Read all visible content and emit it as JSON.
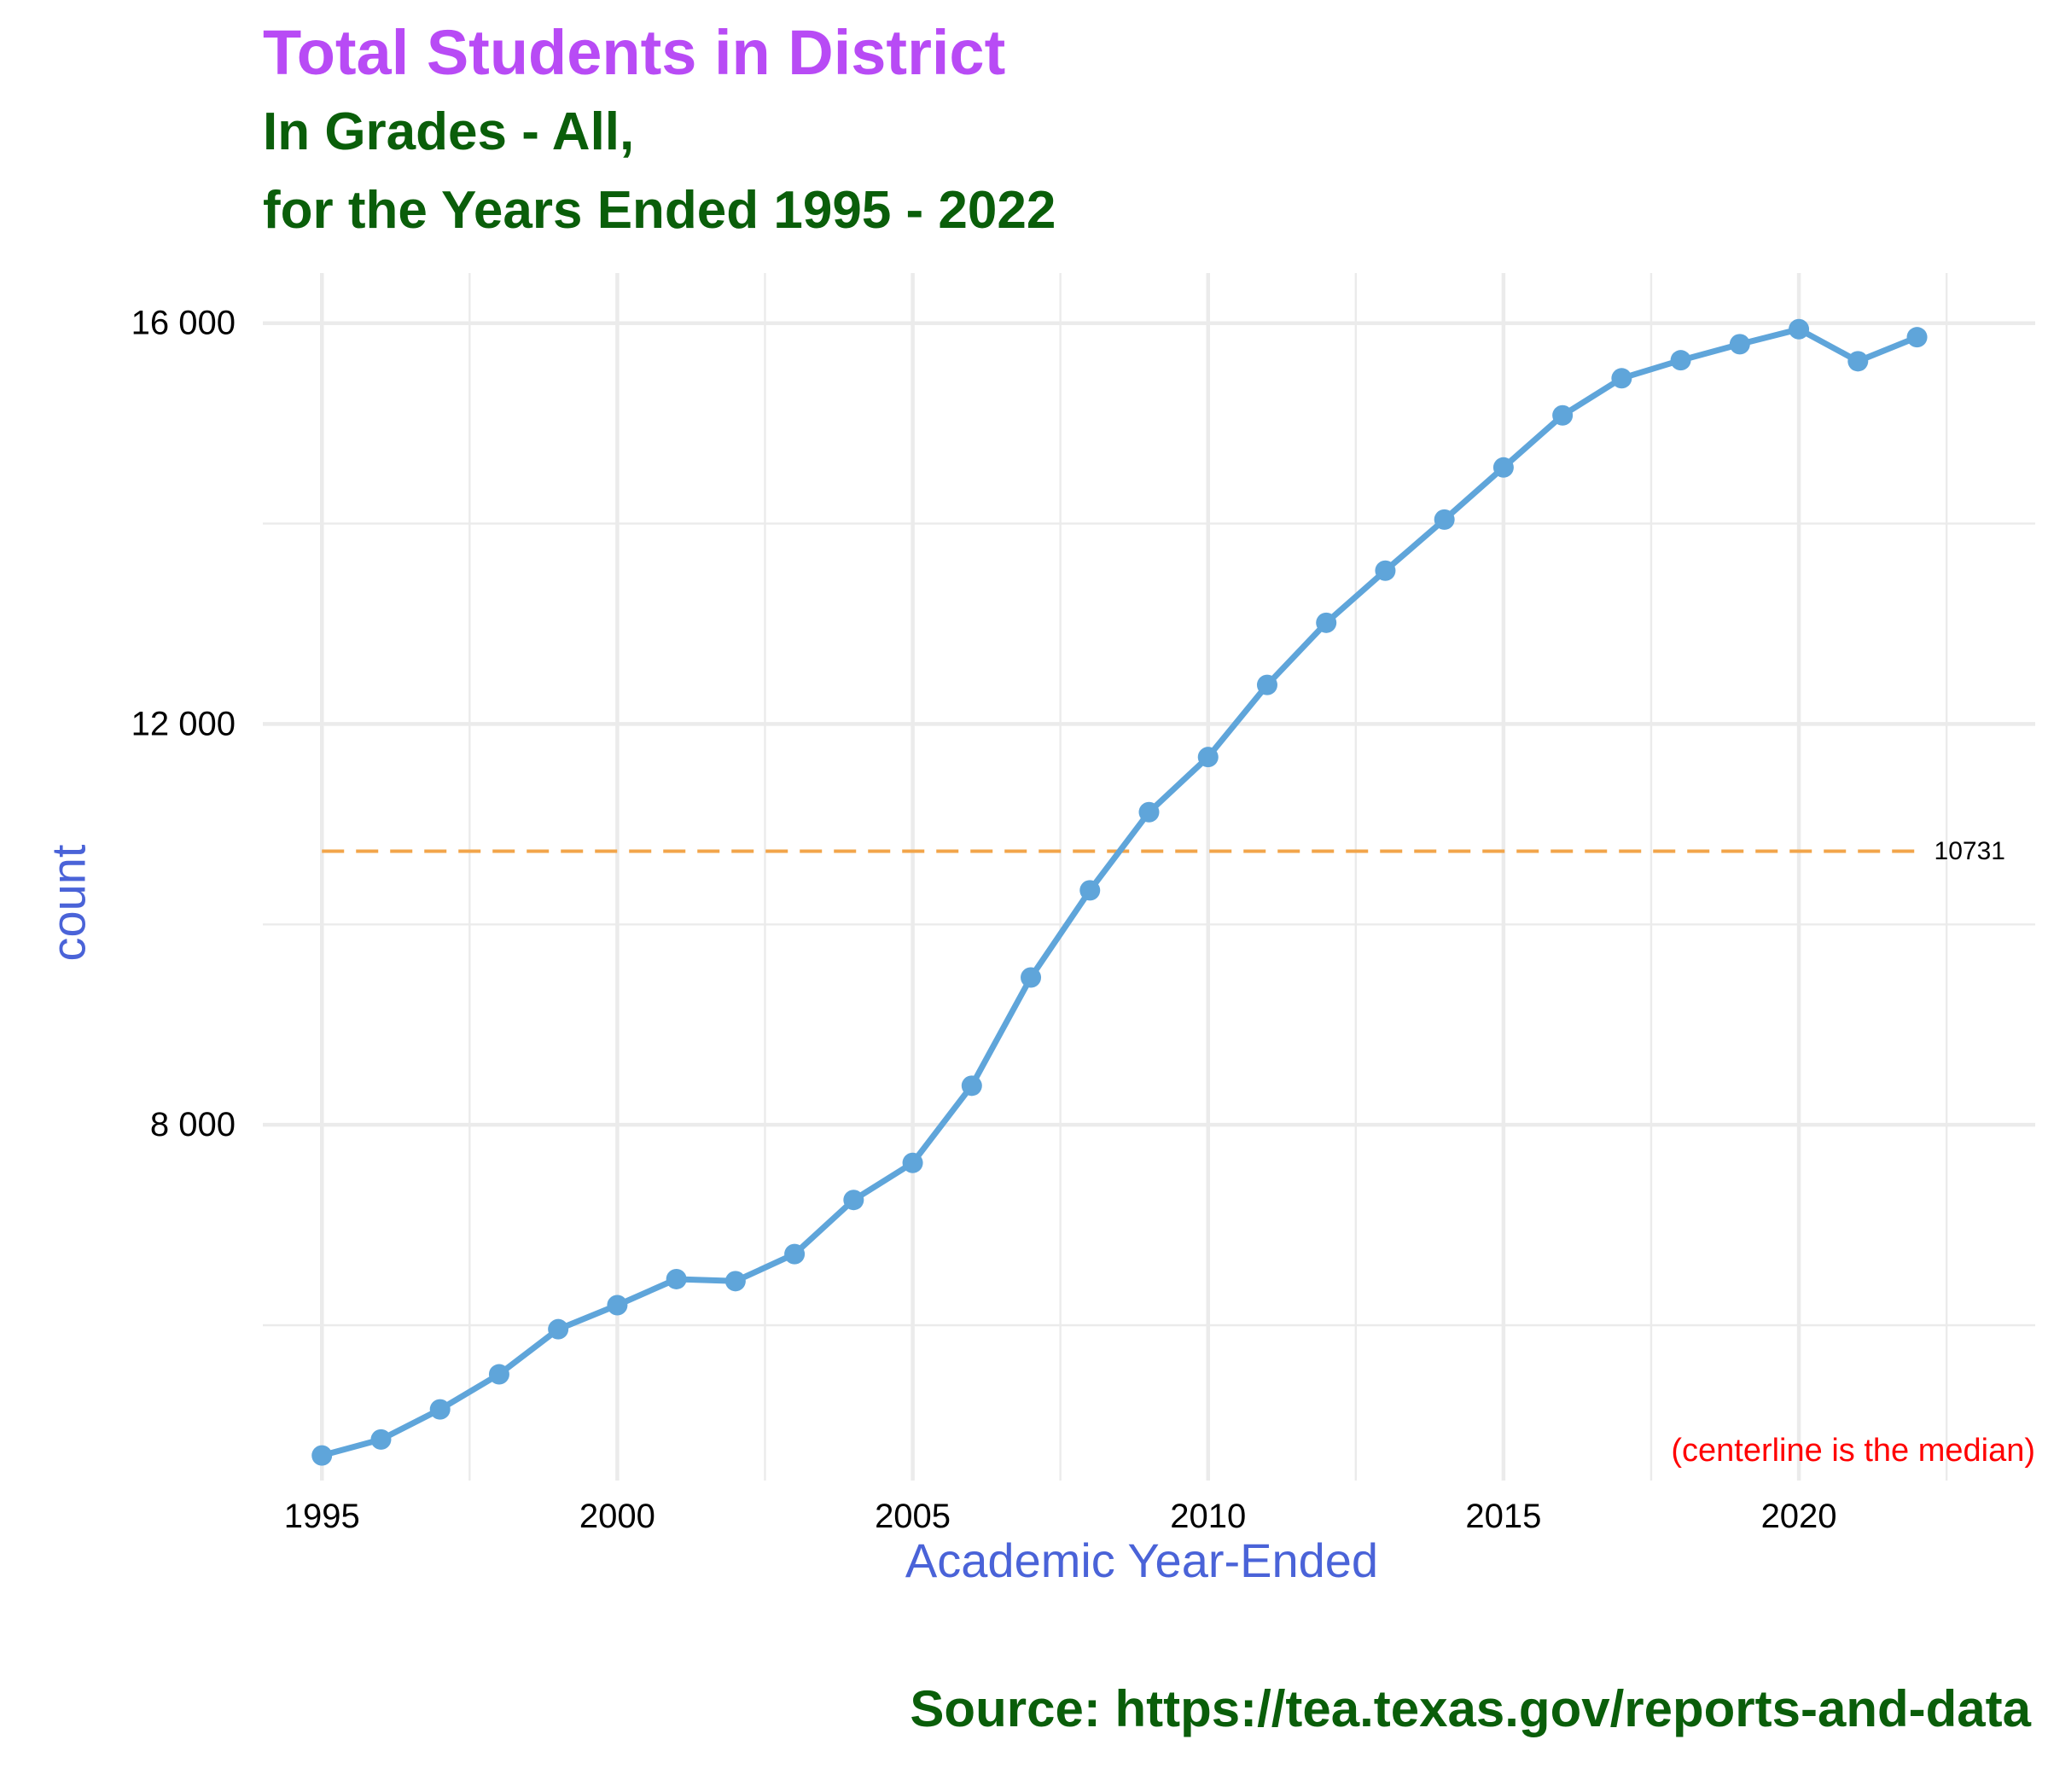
{
  "title": "Total Students in District",
  "subtitle_line1": "In Grades - All,",
  "subtitle_line2": "for the Years Ended 1995 - 2022",
  "caption": "Source:  https://tea.texas.gov/reports-and-data",
  "colors": {
    "title": "#b84bf5",
    "subtitle": "#0a5e0a",
    "axis_label": "#4a63d8",
    "series": "#5fa5da",
    "median_line": "#f2a54a",
    "note": "#ff0000",
    "grid": "#ebebeb"
  },
  "chart_data": {
    "type": "line",
    "xlabel": "Academic Year-Ended",
    "ylabel": "count",
    "x_ticks": [
      1995,
      2000,
      2005,
      2010,
      2015,
      2020
    ],
    "x_tick_labels": [
      "1995",
      "2000",
      "2005",
      "2010",
      "2015",
      "2020"
    ],
    "y_ticks": [
      8000,
      12000,
      16000
    ],
    "y_tick_labels": [
      "8 000",
      "12 000",
      "16 000"
    ],
    "xlim": [
      1994.0,
      2024.0
    ],
    "ylim": [
      4450,
      16500
    ],
    "grid": true,
    "series": [
      {
        "x": [
          1995,
          1996,
          1997,
          1998,
          1999,
          2000,
          2001,
          2002,
          2003,
          2004,
          2005,
          2006,
          2007,
          2008,
          2009,
          2010,
          2011,
          2012,
          2013,
          2014,
          2015,
          2016,
          2017,
          2018,
          2019,
          2020,
          2021,
          2022
        ],
        "values": [
          4700,
          4860,
          5160,
          5510,
          5960,
          6200,
          6460,
          6440,
          6710,
          7250,
          7620,
          8390,
          9470,
          10340,
          11120,
          11670,
          12390,
          13010,
          13530,
          14040,
          14560,
          15080,
          15450,
          15630,
          15790,
          15940,
          15620,
          15860
        ]
      }
    ],
    "median": {
      "value": 10731,
      "label": "10731"
    },
    "annotation": "(centerline is the median)"
  }
}
